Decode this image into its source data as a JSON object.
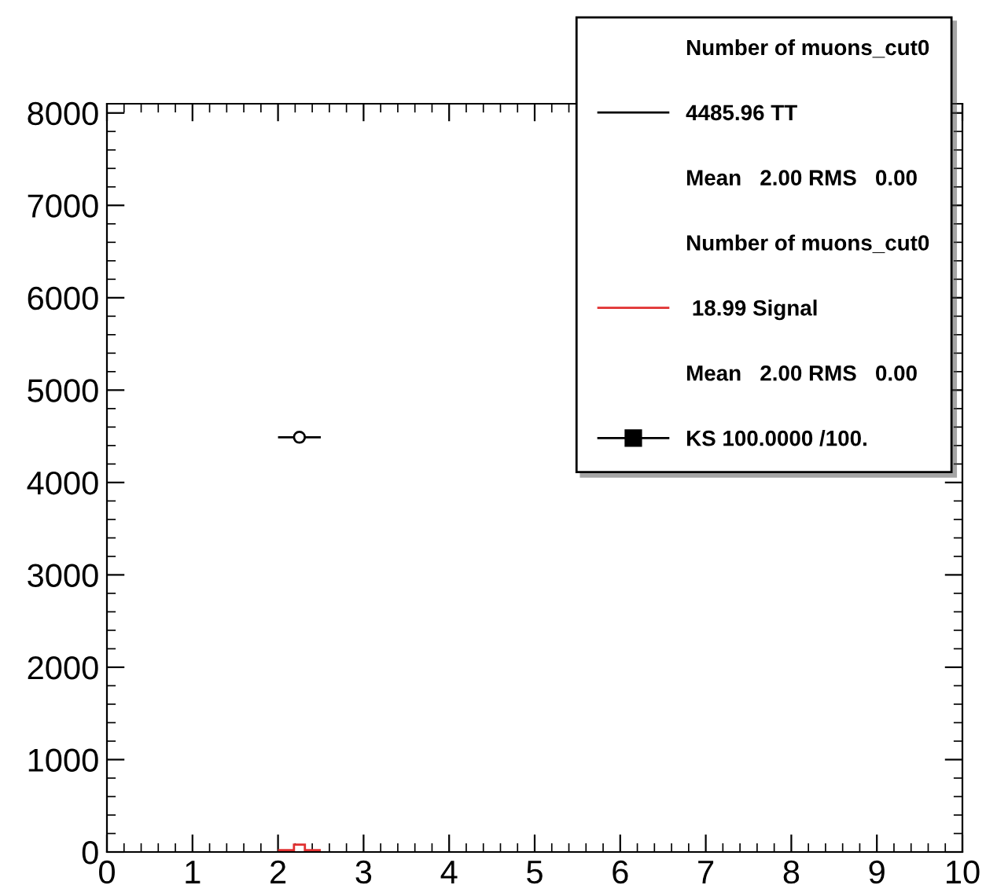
{
  "chart_data": {
    "type": "scatter",
    "series": [
      {
        "name": "4485.96 TT",
        "color": "#000000",
        "x": [
          2.25
        ],
        "values": [
          4490
        ],
        "xerrors": [
          0.25
        ],
        "marker": "circle"
      },
      {
        "name": " 18.99 Signal",
        "color": "#e03030",
        "x": [
          2.25
        ],
        "values": [
          20
        ],
        "xerrors": [
          0.25
        ],
        "marker": "square"
      }
    ],
    "annotations": [
      "Number of muons_cut0",
      "Mean   2.00 RMS   0.00",
      "Number of muons_cut0",
      "Mean   2.00 RMS   0.00",
      "KS 100.0000 /100."
    ],
    "xlim": [
      0,
      10
    ],
    "xticks": [
      0,
      1,
      2,
      3,
      4,
      5,
      6,
      7,
      8,
      9,
      10
    ],
    "ylim": [
      0,
      8100
    ],
    "yticks": [
      0,
      1000,
      2000,
      3000,
      4000,
      5000,
      6000,
      7000,
      8000
    ],
    "grid": false,
    "legend": "top right"
  }
}
